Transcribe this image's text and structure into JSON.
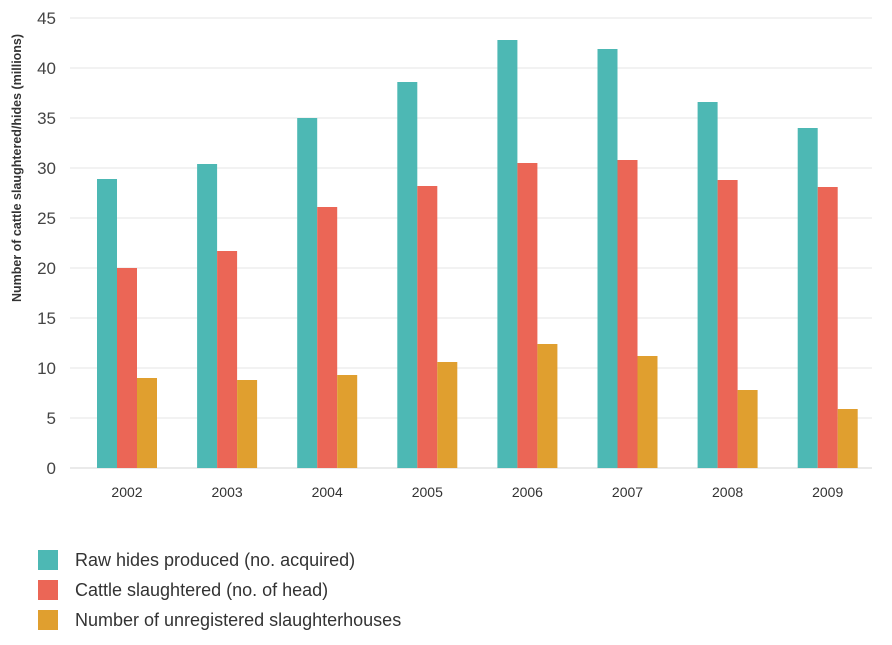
{
  "chart_data": {
    "type": "bar",
    "ylabel": "Number of cattle slaughtered/hides (millions)",
    "xlabel": "",
    "ylim": [
      0,
      45
    ],
    "yticks": [
      0,
      5,
      10,
      15,
      20,
      25,
      30,
      35,
      40,
      45
    ],
    "grid": true,
    "legend_position": "bottom-left",
    "categories": [
      "2002",
      "2003",
      "2004",
      "2005",
      "2006",
      "2007",
      "2008",
      "2009"
    ],
    "series": [
      {
        "name": "Raw hides produced (no. acquired)",
        "color": "#4db8b4",
        "values": [
          28.9,
          30.4,
          35.0,
          38.6,
          42.8,
          41.9,
          36.6,
          34.0
        ]
      },
      {
        "name": "Cattle slaughtered (no. of head)",
        "color": "#eb6656",
        "values": [
          20.0,
          21.7,
          26.1,
          28.2,
          30.5,
          30.8,
          28.8,
          28.1
        ]
      },
      {
        "name": "Number of unregistered slaughterhouses",
        "color": "#e09f2f",
        "values": [
          9.0,
          8.8,
          9.3,
          10.6,
          12.4,
          11.2,
          7.8,
          5.9
        ]
      }
    ]
  }
}
